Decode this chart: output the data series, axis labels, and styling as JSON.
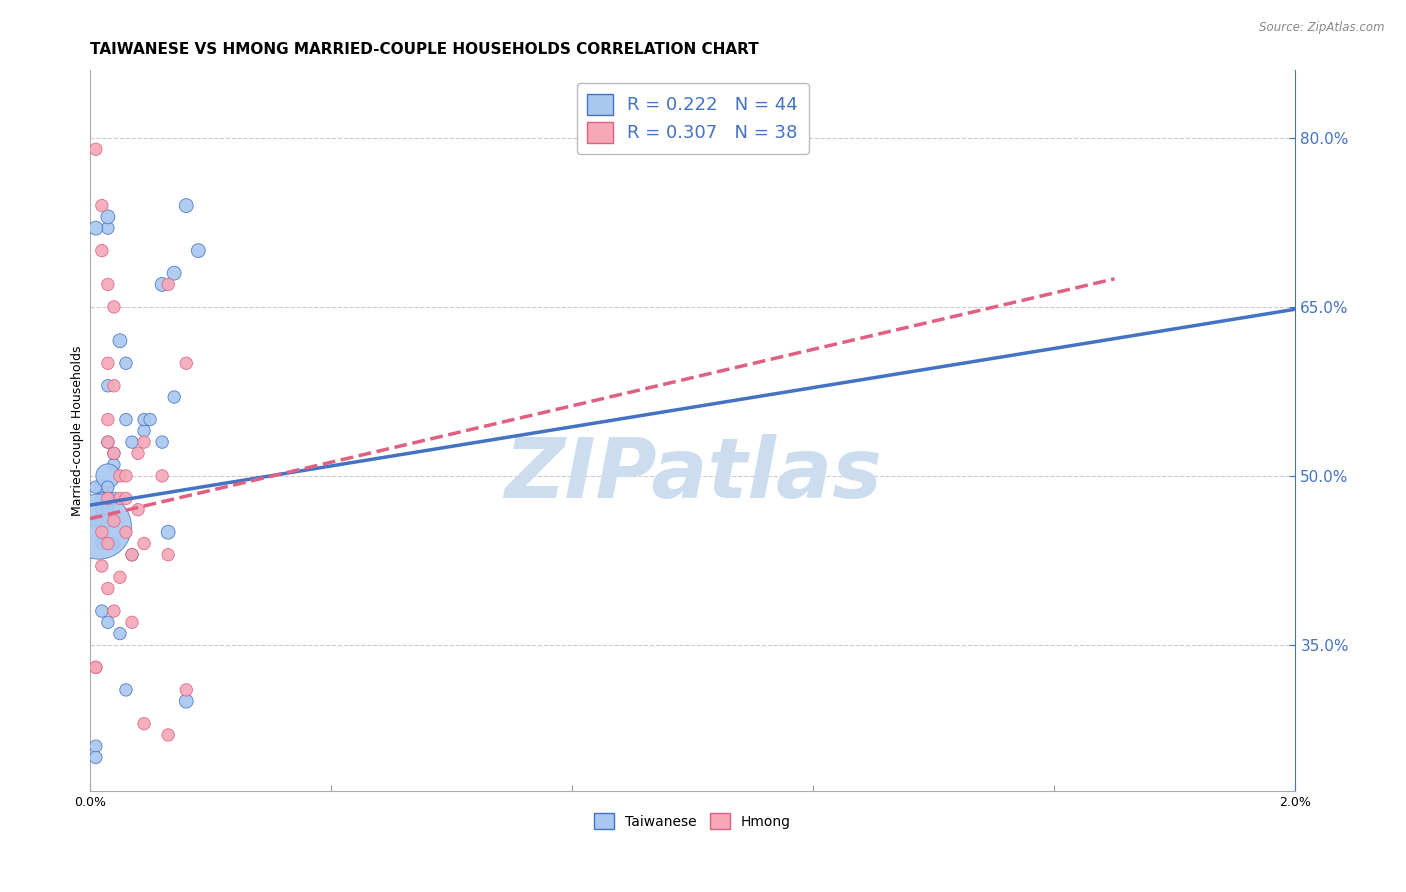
{
  "title": "TAIWANESE VS HMONG MARRIED-COUPLE HOUSEHOLDS CORRELATION CHART",
  "source": "Source: ZipAtlas.com",
  "ylabel": "Married-couple Households",
  "yticks": [
    0.35,
    0.5,
    0.65,
    0.8
  ],
  "ytick_labels": [
    "35.0%",
    "50.0%",
    "65.0%",
    "80.0%"
  ],
  "xlim": [
    0.0,
    0.02
  ],
  "ylim": [
    0.22,
    0.86
  ],
  "legend_R1": "0.222",
  "legend_N1": "44",
  "legend_R2": "0.307",
  "legend_N2": "38",
  "color_taiwanese": "#a8c8f0",
  "color_hmong": "#f4a8b8",
  "color_taiwanese_dark": "#4472c4",
  "color_hmong_dark": "#e06080",
  "label_taiwanese": "Taiwanese",
  "label_hmong": "Hmong",
  "watermark": "ZIPatlas",
  "taiwanese_x": [
    0.0002,
    0.0012,
    0.0003,
    0.0016,
    0.0018,
    0.0001,
    0.0004,
    0.0006,
    0.0003,
    0.0002,
    0.0005,
    0.0003,
    0.0004,
    0.0003,
    0.0002,
    0.0003,
    0.0006,
    0.0004,
    0.0003,
    0.0004,
    0.0007,
    0.0003,
    0.0009,
    0.0014,
    0.0009,
    0.0012,
    0.0003,
    0.0002,
    0.0001,
    0.0002,
    0.0003,
    0.0004,
    0.0007,
    0.0001,
    0.0001,
    0.0013,
    0.0016,
    0.0006,
    0.0005,
    0.001,
    0.0001,
    0.0003,
    0.0014,
    0.00015
  ],
  "taiwanese_y": [
    0.49,
    0.67,
    0.72,
    0.74,
    0.7,
    0.49,
    0.51,
    0.6,
    0.53,
    0.47,
    0.62,
    0.58,
    0.48,
    0.46,
    0.44,
    0.5,
    0.55,
    0.52,
    0.49,
    0.46,
    0.53,
    0.48,
    0.54,
    0.57,
    0.55,
    0.53,
    0.37,
    0.48,
    0.46,
    0.38,
    0.47,
    0.44,
    0.43,
    0.26,
    0.25,
    0.45,
    0.3,
    0.31,
    0.36,
    0.55,
    0.72,
    0.73,
    0.68,
    0.455
  ],
  "taiwanese_sizes": [
    120,
    100,
    80,
    100,
    100,
    80,
    80,
    80,
    80,
    80,
    100,
    80,
    80,
    80,
    80,
    300,
    80,
    80,
    80,
    80,
    80,
    80,
    80,
    80,
    80,
    80,
    80,
    80,
    80,
    80,
    80,
    80,
    80,
    80,
    80,
    100,
    100,
    80,
    80,
    80,
    100,
    100,
    100,
    2200
  ],
  "hmong_x": [
    0.0001,
    0.0002,
    0.0002,
    0.0003,
    0.0004,
    0.0003,
    0.0004,
    0.0003,
    0.0003,
    0.0004,
    0.0005,
    0.0006,
    0.0009,
    0.0008,
    0.0005,
    0.0006,
    0.0004,
    0.0003,
    0.0002,
    0.0003,
    0.0006,
    0.0007,
    0.0005,
    0.0002,
    0.0003,
    0.0004,
    0.0007,
    0.0009,
    0.0013,
    0.0016,
    0.0013,
    0.0001,
    0.0009,
    0.0013,
    0.0016,
    0.0012,
    0.0008,
    0.0001
  ],
  "hmong_y": [
    0.79,
    0.74,
    0.7,
    0.67,
    0.65,
    0.6,
    0.58,
    0.55,
    0.53,
    0.52,
    0.5,
    0.5,
    0.53,
    0.52,
    0.48,
    0.48,
    0.46,
    0.48,
    0.45,
    0.44,
    0.45,
    0.43,
    0.41,
    0.42,
    0.4,
    0.38,
    0.37,
    0.44,
    0.43,
    0.6,
    0.67,
    0.33,
    0.28,
    0.27,
    0.31,
    0.5,
    0.47,
    0.33
  ],
  "hmong_sizes": [
    80,
    80,
    80,
    80,
    80,
    80,
    80,
    80,
    80,
    80,
    80,
    80,
    80,
    80,
    80,
    80,
    80,
    80,
    80,
    80,
    80,
    80,
    80,
    80,
    80,
    80,
    80,
    80,
    80,
    80,
    80,
    80,
    80,
    80,
    80,
    80,
    80,
    80
  ],
  "taiwanese_trend_x": [
    0.0,
    0.02
  ],
  "taiwanese_trend_y": [
    0.474,
    0.648
  ],
  "hmong_trend_x": [
    0.0,
    0.017
  ],
  "hmong_trend_y": [
    0.462,
    0.675
  ],
  "background_color": "#ffffff",
  "grid_color": "#cccccc",
  "title_fontsize": 11,
  "axis_label_fontsize": 9,
  "tick_fontsize": 9,
  "watermark_color": "#ccddf0",
  "watermark_fontsize": 60,
  "right_axis_color": "#4472c4"
}
